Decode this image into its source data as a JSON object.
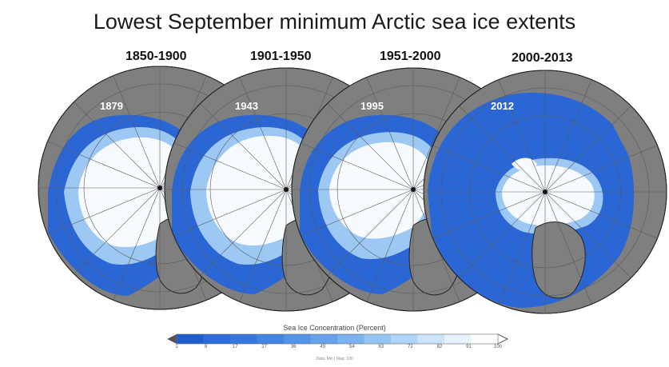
{
  "title": "Lowest September minimum Arctic sea ice extents",
  "panels": [
    {
      "period": "1850-1900",
      "year": "1879"
    },
    {
      "period": "1901-1950",
      "year": "1943"
    },
    {
      "period": "1951-2000",
      "year": "1995"
    },
    {
      "period": "2000-2013",
      "year": "2012"
    }
  ],
  "colorbar": {
    "title": "Sea Ice Concentration (Percent)",
    "ticks": [
      "1",
      "8",
      "17",
      "27",
      "36",
      "45",
      "54",
      "63",
      "72",
      "82",
      "91",
      "100"
    ],
    "colors": [
      "#1e5fd0",
      "#2a6dd8",
      "#3679de",
      "#4385e2",
      "#5593e8",
      "#66a3ec",
      "#7ab3f0",
      "#93c4f4",
      "#aed4f7",
      "#cbe4fa",
      "#e6f2fd",
      "#ffffff"
    ],
    "footer": "Data: Min  |  Map: 100"
  },
  "colors": {
    "land": "#7f7f7f",
    "ocean": "#2a66d4",
    "ice_pack": "#f7fbff",
    "ice_edge": "#9cc8f3",
    "coast": "#222222",
    "grid": "#5a5a5a"
  }
}
